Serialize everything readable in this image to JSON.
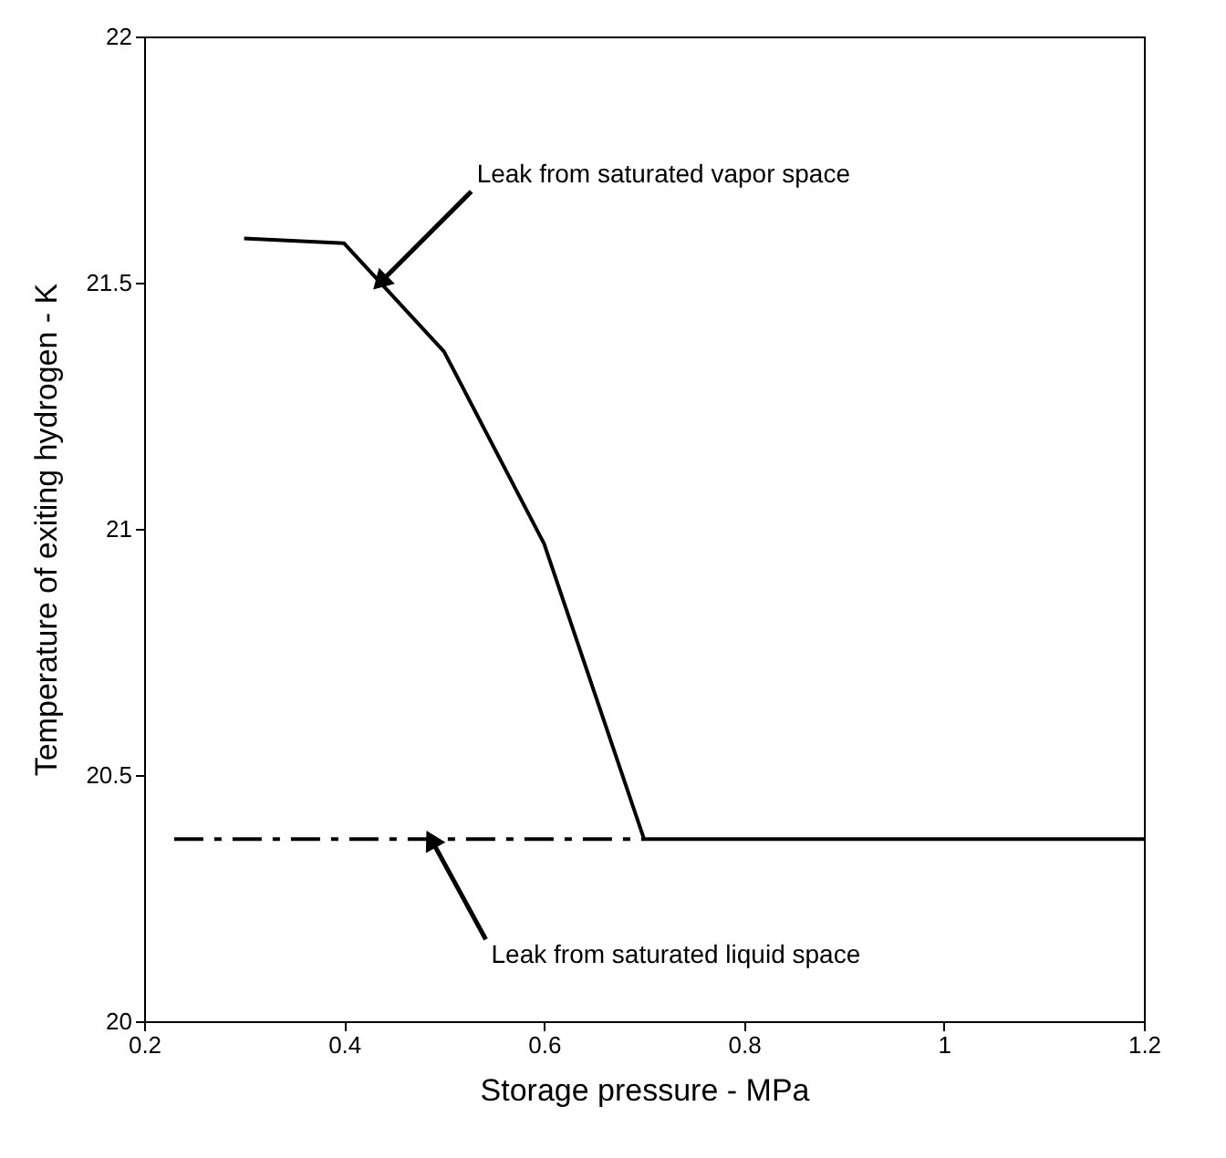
{
  "chart_data": {
    "type": "line",
    "xlabel": "Storage pressure - MPa",
    "ylabel": "Temperature of exiting hydrogen - K",
    "xlim": [
      0.2,
      1.2
    ],
    "xticks": [
      0.2,
      0.4,
      0.6,
      0.8,
      1,
      1.2
    ],
    "ylim": [
      20,
      22
    ],
    "yticks": [
      20,
      20.5,
      21,
      21.5,
      22
    ],
    "grid": false,
    "series": [
      {
        "color": "#000000",
        "line_style": "solid",
        "x": [
          0.3,
          0.4,
          0.5,
          0.6,
          0.7,
          1.2
        ],
        "values": [
          21.59,
          21.58,
          21.36,
          20.97,
          20.37,
          20.37
        ]
      },
      {
        "color": "#000000",
        "line_style": "dashed",
        "x": [
          0.23,
          0.7
        ],
        "values": [
          20.37,
          20.37
        ]
      }
    ],
    "annotations": [
      {
        "text": "Leak from saturated vapor space",
        "x": 0.436,
        "y": 21.5
      },
      {
        "text": "Leak from saturated liquid space",
        "x": 0.487,
        "y": 20.37
      }
    ]
  }
}
